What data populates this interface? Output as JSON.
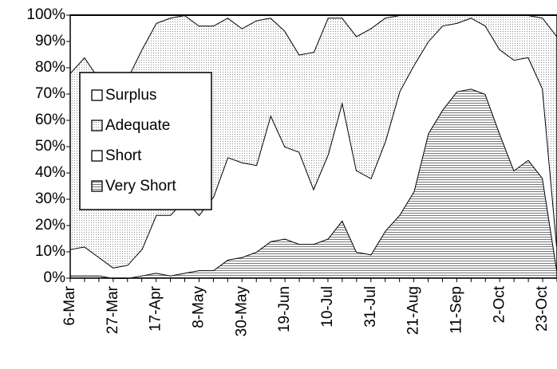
{
  "chart_data": {
    "type": "stacked_area",
    "categories": [
      "6-Mar",
      null,
      null,
      "27-Mar",
      null,
      null,
      "17-Apr",
      null,
      null,
      "8-May",
      null,
      null,
      "30-May",
      null,
      null,
      "19-Jun",
      null,
      null,
      "10-Jul",
      null,
      null,
      "31-Jul",
      null,
      null,
      "21-Aug",
      null,
      null,
      "11-Sep",
      null,
      null,
      "2-Oct",
      null,
      null,
      "23-Oct",
      null
    ],
    "series": [
      {
        "name": "Surplus",
        "color": "#ffffff",
        "pattern": "none",
        "values": [
          22,
          16,
          24,
          26,
          24,
          13,
          3,
          1,
          0,
          4,
          4,
          1,
          5,
          2,
          1,
          6,
          15,
          14,
          1,
          1,
          8,
          5,
          1,
          0,
          0,
          0,
          0,
          0,
          0,
          0,
          0,
          0,
          0,
          1,
          8
        ]
      },
      {
        "name": "Adequate",
        "color": "#ffffff",
        "pattern": "dots",
        "values": [
          67,
          72,
          68,
          70,
          71,
          76,
          73,
          75,
          70,
          72,
          65,
          53,
          51,
          55,
          37,
          44,
          37,
          52,
          52,
          32,
          51,
          57,
          47,
          29,
          19,
          10,
          4,
          3,
          1,
          4,
          13,
          17,
          16,
          27,
          80
        ]
      },
      {
        "name": "Short",
        "color": "#ffffff",
        "pattern": "none",
        "values": [
          10,
          11,
          7,
          4,
          5,
          10,
          22,
          23,
          28,
          21,
          28,
          39,
          36,
          33,
          48,
          35,
          35,
          21,
          32,
          45,
          31,
          29,
          34,
          47,
          48,
          35,
          32,
          26,
          27,
          26,
          32,
          42,
          39,
          34,
          9
        ]
      },
      {
        "name": "Very Short",
        "color": "#ffffff",
        "pattern": "hlines",
        "values": [
          1,
          1,
          1,
          0,
          0,
          1,
          2,
          1,
          2,
          3,
          3,
          7,
          8,
          10,
          14,
          15,
          13,
          13,
          15,
          22,
          10,
          9,
          18,
          24,
          33,
          55,
          64,
          71,
          72,
          70,
          55,
          41,
          45,
          38,
          3
        ]
      }
    ],
    "ylim": [
      0,
      100
    ],
    "yticks": [
      {
        "value": 0,
        "label": "0%"
      },
      {
        "value": 10,
        "label": "10%"
      },
      {
        "value": 20,
        "label": "20%"
      },
      {
        "value": 30,
        "label": "30%"
      },
      {
        "value": 40,
        "label": "40%"
      },
      {
        "value": 50,
        "label": "50%"
      },
      {
        "value": 60,
        "label": "60%"
      },
      {
        "value": 70,
        "label": "70%"
      },
      {
        "value": 80,
        "label": "80%"
      },
      {
        "value": 90,
        "label": "90%"
      },
      {
        "value": 100,
        "label": "100%"
      }
    ],
    "legend": "upper left"
  }
}
